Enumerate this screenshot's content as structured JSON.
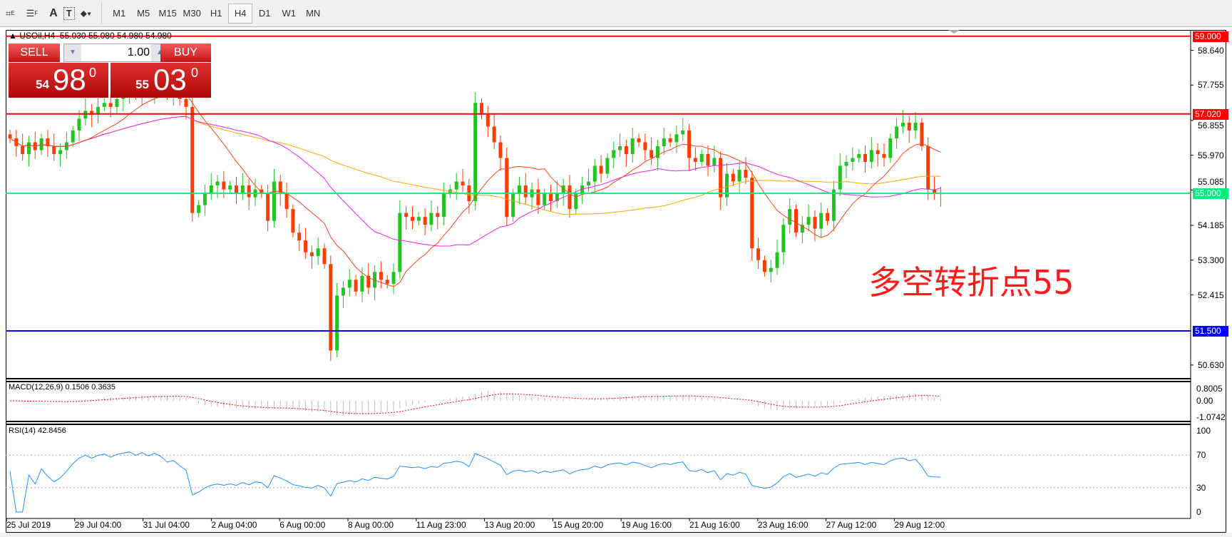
{
  "toolbar": {
    "tools": [
      "fibonacci-expansion-icon",
      "fibonacci-fan-icon",
      "text-icon",
      "text-label-icon",
      "arrows-icon"
    ],
    "text_tool": "A",
    "timeframes": [
      "M1",
      "M5",
      "M15",
      "M30",
      "H1",
      "H4",
      "D1",
      "W1",
      "MN"
    ],
    "active_timeframe": "H4"
  },
  "header": {
    "symbol": "USOil,H4",
    "ohlc": "55.030 55.080 54.980 54.980"
  },
  "trade": {
    "sell_label": "SELL",
    "buy_label": "BUY",
    "lot": "1.00",
    "sell_big": "54",
    "sell_pips": "98",
    "sell_sup": "0",
    "buy_big": "55",
    "buy_pips": "03",
    "buy_sup": "0"
  },
  "annotation": "多空转折点55",
  "colors": {
    "bull": "#22c422",
    "bear": "#ff3c00",
    "ma_fast": "#ff4010",
    "ma_mid": "#ee22ee",
    "ma_slow": "#ffa500",
    "resistance": "#ff0000",
    "pivot": "#00ee80",
    "support": "#0000ff",
    "rsi": "#1e90ff",
    "macd_signal": "#ff0000"
  },
  "levels": [
    {
      "price": 59.0,
      "label": "59.000",
      "color": "#ff0000"
    },
    {
      "price": 57.02,
      "label": "57.020",
      "color": "#ff0000"
    },
    {
      "price": 55.0,
      "label": "55.000",
      "color": "#00ee80"
    },
    {
      "price": 51.5,
      "label": "51.500",
      "color": "#0000ff"
    }
  ],
  "chart_data": {
    "type": "candlestick",
    "ylim": [
      50.3,
      59.3
    ],
    "yticks": [
      "58.640",
      "57.755",
      "56.855",
      "55.970",
      "55.085",
      "54.185",
      "53.300",
      "52.415",
      "50.630"
    ],
    "ytick_values": [
      58.64,
      57.755,
      56.855,
      55.97,
      55.085,
      54.185,
      53.3,
      52.415,
      50.63
    ],
    "xticks": [
      "25 Jul 2019",
      "29 Jul 04:00",
      "31 Jul 04:00",
      "2 Aug 04:00",
      "6 Aug 00:00",
      "8 Aug 00:00",
      "11 Aug 23:00",
      "13 Aug 20:00",
      "15 Aug 20:00",
      "19 Aug 16:00",
      "21 Aug 16:00",
      "23 Aug 16:00",
      "27 Aug 12:00",
      "29 Aug 12:00"
    ],
    "closes": [
      56.4,
      56.2,
      56.0,
      56.3,
      56.1,
      56.4,
      56.2,
      56.0,
      56.1,
      56.3,
      56.6,
      56.9,
      57.1,
      57.0,
      57.2,
      57.3,
      57.2,
      57.4,
      57.5,
      57.6,
      57.5,
      57.7,
      57.6,
      57.8,
      57.7,
      57.5,
      57.6,
      57.4,
      57.2,
      54.5,
      54.7,
      55.0,
      55.2,
      55.3,
      55.1,
      55.2,
      55.0,
      55.2,
      54.9,
      55.1,
      55.0,
      54.3,
      55.3,
      55.0,
      54.6,
      54.0,
      53.8,
      53.5,
      53.4,
      53.6,
      53.2,
      51.0,
      52.4,
      52.6,
      52.8,
      52.5,
      52.9,
      52.6,
      53.0,
      52.8,
      52.7,
      53.0,
      54.5,
      54.4,
      54.3,
      54.4,
      54.2,
      54.5,
      54.4,
      55.0,
      55.1,
      55.3,
      55.2,
      54.8,
      57.3,
      57.0,
      56.7,
      56.3,
      55.9,
      54.4,
      55.0,
      55.2,
      54.9,
      55.1,
      54.7,
      55.0,
      54.8,
      55.0,
      55.2,
      54.6,
      55.0,
      55.2,
      55.3,
      55.7,
      55.5,
      55.9,
      56.1,
      56.2,
      56.0,
      56.4,
      56.3,
      56.1,
      55.9,
      56.2,
      56.4,
      56.3,
      56.5,
      56.6,
      55.9,
      55.8,
      56.0,
      55.7,
      55.9,
      54.9,
      55.5,
      55.3,
      55.6,
      55.4,
      53.6,
      53.3,
      53.0,
      53.1,
      53.5,
      54.2,
      54.6,
      54.0,
      54.2,
      54.4,
      54.1,
      54.5,
      54.3,
      55.1,
      55.7,
      55.8,
      55.9,
      56.0,
      55.8,
      56.1,
      56.0,
      55.9,
      56.4,
      56.7,
      56.8,
      56.6,
      56.8,
      56.2,
      55.1,
      55.0,
      54.98
    ],
    "macd": {
      "label": "MACD(12,26,9) 0.1506 0.3635",
      "yticks": [
        "0.8005",
        "0.00",
        "-1.0742"
      ],
      "range": [
        -1.0742,
        0.8005
      ]
    },
    "rsi": {
      "label": "RSI(14) 42.8456",
      "yticks": [
        "100",
        "70",
        "30",
        "0"
      ],
      "levels": [
        30,
        70
      ]
    }
  }
}
